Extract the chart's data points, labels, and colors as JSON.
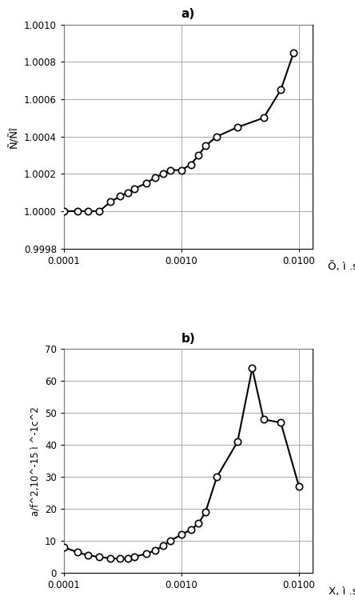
{
  "chart_a": {
    "title": "a)",
    "xlabel": "Õ, ì .s.",
    "ylabel": "Ñ/Ñî",
    "x": [
      0.0001,
      0.00013,
      0.00016,
      0.0002,
      0.00025,
      0.0003,
      0.00035,
      0.0004,
      0.0005,
      0.0006,
      0.0007,
      0.0008,
      0.001,
      0.0012,
      0.0014,
      0.0016,
      0.002,
      0.003,
      0.005,
      0.007,
      0.009
    ],
    "y": [
      1.0,
      1.0,
      1.0,
      1.0,
      1.00005,
      1.00008,
      1.0001,
      1.00012,
      1.00015,
      1.00018,
      1.0002,
      1.00022,
      1.00022,
      1.00025,
      1.0003,
      1.00035,
      1.0004,
      1.00045,
      1.0005,
      1.00065,
      1.00085
    ],
    "xlim_min": 0.0001,
    "xlim_max": 0.013,
    "ylim_min": 0.9998,
    "ylim_max": 1.001,
    "yticks": [
      0.9998,
      1.0,
      1.0002,
      1.0004,
      1.0006,
      1.0008,
      1.001
    ],
    "xticks": [
      0.0001,
      0.001,
      0.01
    ]
  },
  "chart_b": {
    "title": "b)",
    "xlabel": "X, ì .s.",
    "ylabel": "a/f^2,10^-15 ì ^-1c^2",
    "x": [
      0.0001,
      0.00013,
      0.00016,
      0.0002,
      0.00025,
      0.0003,
      0.00035,
      0.0004,
      0.0005,
      0.0006,
      0.0007,
      0.0008,
      0.001,
      0.0012,
      0.0014,
      0.0016,
      0.002,
      0.003,
      0.004,
      0.005,
      0.007,
      0.01
    ],
    "y": [
      8.0,
      6.5,
      5.5,
      5.0,
      4.5,
      4.5,
      4.5,
      5.0,
      6.0,
      7.0,
      8.5,
      10.0,
      12.0,
      13.5,
      15.5,
      19.0,
      30.0,
      41.0,
      64.0,
      48.0,
      47.0,
      27.0
    ],
    "xlim_min": 0.0001,
    "xlim_max": 0.013,
    "ylim_min": 0,
    "ylim_max": 70,
    "yticks": [
      0,
      10,
      20,
      30,
      40,
      50,
      60,
      70
    ],
    "xticks": [
      0.0001,
      0.001,
      0.01
    ]
  },
  "line_color": "#000000",
  "marker_facecolor": "#ffffff",
  "marker_edgecolor": "#000000",
  "marker_size": 6,
  "line_width": 1.5,
  "background_color": "#ffffff",
  "grid_color": "#999999",
  "grid_lw": 0.6
}
